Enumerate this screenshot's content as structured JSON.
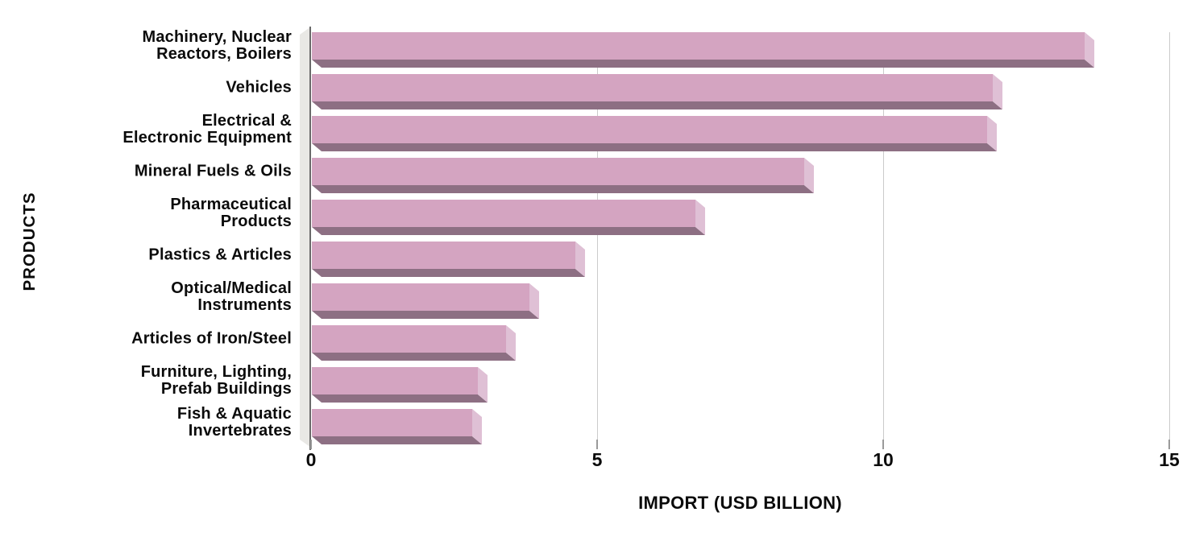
{
  "chart_data": {
    "type": "bar",
    "orientation": "horizontal",
    "title": "",
    "xlabel": "IMPORT (USD BILLION)",
    "ylabel": "PRODUCTS",
    "xlim": [
      0,
      15
    ],
    "xticks": [
      0,
      5,
      10,
      15
    ],
    "grid": "vertical gridlines at 5, 10 and 15; no plot border",
    "legend": "none",
    "categories": [
      "Machinery, Nuclear Reactors, Boilers",
      "Vehicles",
      "Electrical & Electronic Equipment",
      "Mineral Fuels & Oils",
      "Pharmaceutical Products",
      "Plastics & Articles",
      "Optical/Medical Instruments",
      "Articles of Iron/Steel",
      "Furniture, Lighting, Prefab Buildings",
      "Fish & Aquatic Invertebrates"
    ],
    "category_label_lines": [
      [
        "Machinery, Nuclear",
        "Reactors, Boilers"
      ],
      [
        "Vehicles"
      ],
      [
        "Electrical &",
        "Electronic Equipment"
      ],
      [
        "Mineral Fuels & Oils"
      ],
      [
        "Pharmaceutical",
        "Products"
      ],
      [
        "Plastics & Articles"
      ],
      [
        "Optical/Medical",
        "Instruments"
      ],
      [
        "Articles of Iron/Steel"
      ],
      [
        "Furniture, Lighting,",
        "Prefab Buildings"
      ],
      [
        "Fish & Aquatic",
        "Invertebrates"
      ]
    ],
    "values": [
      13.5,
      11.9,
      11.8,
      8.6,
      6.7,
      4.6,
      3.8,
      3.4,
      2.9,
      2.8
    ],
    "colors": {
      "bar_face": "#d4a4c1",
      "bar_side_bevel": "#dfc0d5",
      "bar_bottom_shadow": "#8d6f83",
      "wall": "#e9e8e5",
      "gridline": "#cbcbcb",
      "axis_line": "#6a6a6a",
      "text": "#0b0b0b",
      "background": "#ffffff"
    }
  }
}
